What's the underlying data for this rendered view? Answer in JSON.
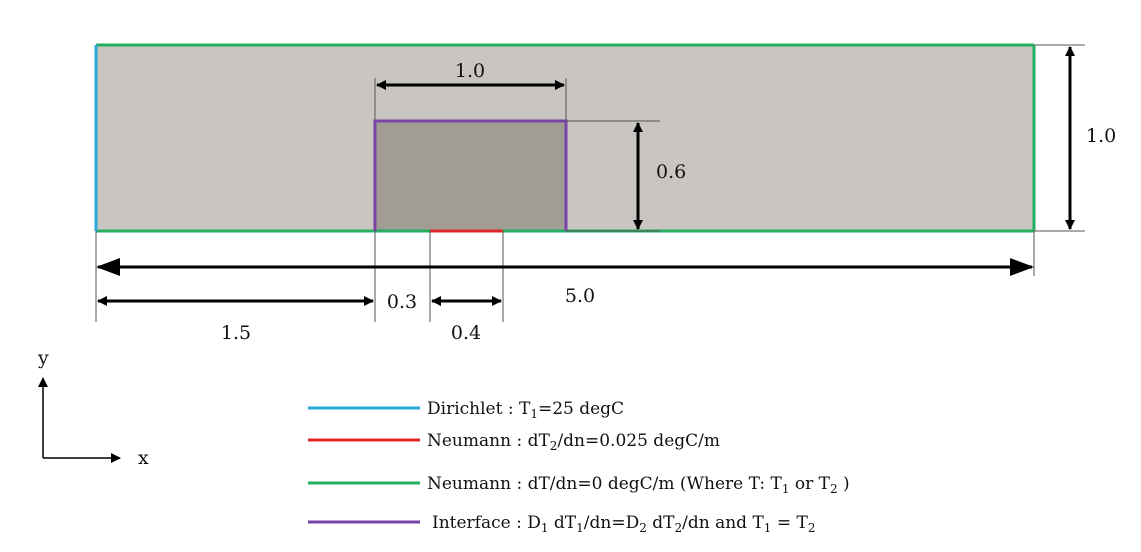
{
  "colors": {
    "domain_fill": "#c9c5c0",
    "subdomain_fill": "#a19d93",
    "dirichlet": "#29a8dc",
    "neumann_flux": "#e02727",
    "neumann_zero": "#25b061",
    "interface": "#7a43a8",
    "arrow": "#000000",
    "dim_line": "#555555"
  },
  "dimensions": {
    "domain_length": "5.0",
    "domain_height": "1.0",
    "sub_width": "1.0",
    "sub_height": "0.6",
    "offset_left": "1.5",
    "offset_gap": "0.3",
    "source_width": "0.4"
  },
  "axes": {
    "x_label": "x",
    "y_label": "y"
  },
  "legend": [
    {
      "key": "dirichlet",
      "parts": [
        {
          "t": "Dirichlet : T"
        },
        {
          "t": "1",
          "sub": true
        },
        {
          "t": "=25 degC"
        }
      ]
    },
    {
      "key": "neumann_flux",
      "parts": [
        {
          "t": "Neumann : dT"
        },
        {
          "t": "2",
          "sub": true
        },
        {
          "t": "/dn=0.025 degC/m"
        }
      ]
    },
    {
      "key": "neumann_zero",
      "parts": [
        {
          "t": "Neumann : dT/dn=0 degC/m  (Where T: T"
        },
        {
          "t": "1",
          "sub": true
        },
        {
          "t": " or T"
        },
        {
          "t": "2",
          "sub": true
        },
        {
          "t": " )"
        }
      ]
    },
    {
      "key": "interface",
      "parts": [
        {
          "t": "Interface : D"
        },
        {
          "t": "1",
          "sub": true
        },
        {
          "t": " dT"
        },
        {
          "t": "1",
          "sub": true
        },
        {
          "t": "/dn=D"
        },
        {
          "t": "2",
          "sub": true
        },
        {
          "t": " dT"
        },
        {
          "t": "2",
          "sub": true
        },
        {
          "t": "/dn  and T"
        },
        {
          "t": "1",
          "sub": true
        },
        {
          "t": " = T"
        },
        {
          "t": "2",
          "sub": true
        }
      ]
    }
  ]
}
